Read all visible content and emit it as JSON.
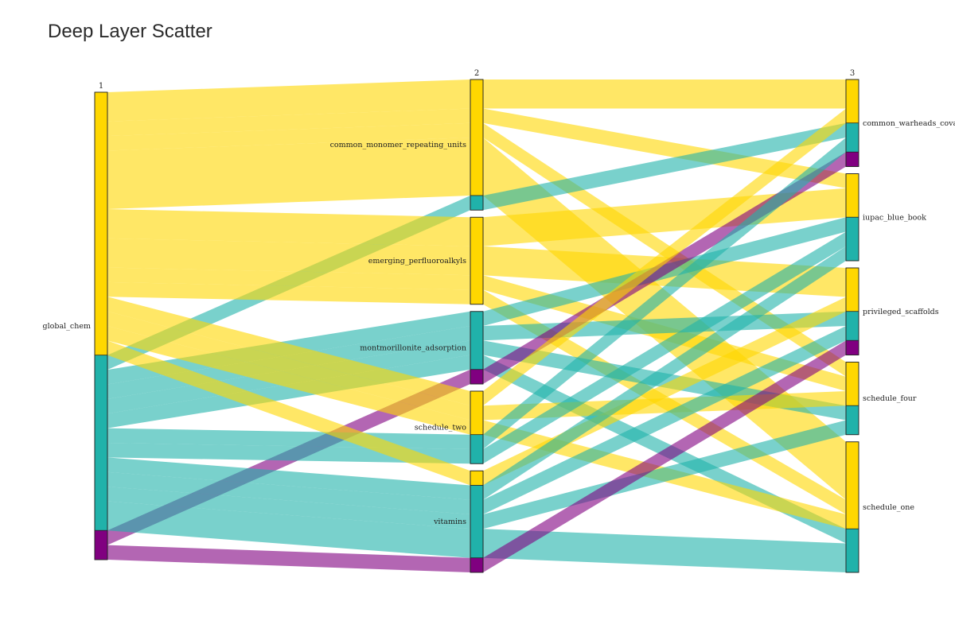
{
  "chart_data": {
    "type": "parallel_categories",
    "title": "Deep Layer Scatter",
    "dimensions": [
      {
        "label": "1",
        "categories": [
          "global_chem"
        ]
      },
      {
        "label": "2",
        "categories": [
          "common_monomer_repeating_units",
          "emerging_perfluoroalkyls",
          "montmorillonite_adsorption",
          "schedule_two",
          "vitamins"
        ]
      },
      {
        "label": "3",
        "categories": [
          "common_warheads_covalent",
          "iupac_blue_book",
          "privileged_scaffolds",
          "schedule_four",
          "schedule_one"
        ]
      }
    ],
    "colors": {
      "yellow": "#FFD700",
      "teal": "#20B2AA",
      "purple": "#800080"
    },
    "color_order": [
      "yellow",
      "teal",
      "purple"
    ],
    "paths": [
      {
        "d2": "common_monomer_repeating_units",
        "d3": "common_warheads_covalent",
        "color": "yellow",
        "count": 2
      },
      {
        "d2": "common_monomer_repeating_units",
        "d3": "iupac_blue_book",
        "color": "yellow",
        "count": 1
      },
      {
        "d2": "common_monomer_repeating_units",
        "d3": "schedule_four",
        "color": "yellow",
        "count": 1
      },
      {
        "d2": "common_monomer_repeating_units",
        "d3": "schedule_one",
        "color": "yellow",
        "count": 4
      },
      {
        "d2": "common_monomer_repeating_units",
        "d3": "common_warheads_covalent",
        "color": "teal",
        "count": 1
      },
      {
        "d2": "emerging_perfluoroalkyls",
        "d3": "iupac_blue_book",
        "color": "yellow",
        "count": 2
      },
      {
        "d2": "emerging_perfluoroalkyls",
        "d3": "privileged_scaffolds",
        "color": "yellow",
        "count": 2
      },
      {
        "d2": "emerging_perfluoroalkyls",
        "d3": "schedule_four",
        "color": "yellow",
        "count": 1
      },
      {
        "d2": "emerging_perfluoroalkyls",
        "d3": "schedule_one",
        "color": "yellow",
        "count": 1
      },
      {
        "d2": "montmorillonite_adsorption",
        "d3": "iupac_blue_book",
        "color": "teal",
        "count": 1
      },
      {
        "d2": "montmorillonite_adsorption",
        "d3": "privileged_scaffolds",
        "color": "teal",
        "count": 1
      },
      {
        "d2": "montmorillonite_adsorption",
        "d3": "schedule_four",
        "color": "teal",
        "count": 1
      },
      {
        "d2": "montmorillonite_adsorption",
        "d3": "schedule_one",
        "color": "teal",
        "count": 1
      },
      {
        "d2": "montmorillonite_adsorption",
        "d3": "common_warheads_covalent",
        "color": "purple",
        "count": 1
      },
      {
        "d2": "schedule_two",
        "d3": "common_warheads_covalent",
        "color": "yellow",
        "count": 1
      },
      {
        "d2": "schedule_two",
        "d3": "schedule_four",
        "color": "yellow",
        "count": 1
      },
      {
        "d2": "schedule_two",
        "d3": "schedule_one",
        "color": "yellow",
        "count": 1
      },
      {
        "d2": "schedule_two",
        "d3": "common_warheads_covalent",
        "color": "teal",
        "count": 1
      },
      {
        "d2": "schedule_two",
        "d3": "iupac_blue_book",
        "color": "teal",
        "count": 1
      },
      {
        "d2": "vitamins",
        "d3": "privileged_scaffolds",
        "color": "yellow",
        "count": 1
      },
      {
        "d2": "vitamins",
        "d3": "iupac_blue_book",
        "color": "teal",
        "count": 1
      },
      {
        "d2": "vitamins",
        "d3": "privileged_scaffolds",
        "color": "teal",
        "count": 1
      },
      {
        "d2": "vitamins",
        "d3": "schedule_four",
        "color": "teal",
        "count": 1
      },
      {
        "d2": "vitamins",
        "d3": "schedule_one",
        "color": "teal",
        "count": 2
      },
      {
        "d2": "vitamins",
        "d3": "privileged_scaffolds",
        "color": "purple",
        "count": 1
      }
    ]
  }
}
